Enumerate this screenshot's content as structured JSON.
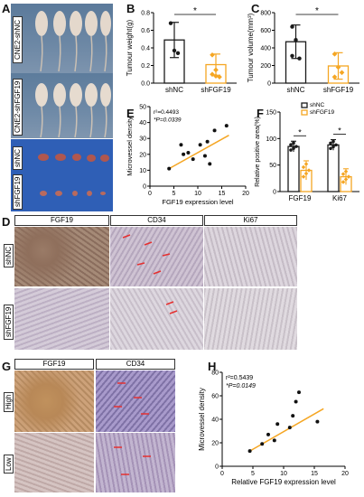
{
  "panels": {
    "A": {
      "label": "A",
      "rows": [
        "CNE2-shNC",
        "CNE2-shFGF19",
        "shNC",
        "shFGF19"
      ]
    },
    "B": {
      "label": "B"
    },
    "C": {
      "label": "C"
    },
    "D": {
      "label": "D",
      "columns": [
        "FGF19",
        "CD34",
        "Ki67"
      ],
      "rows": [
        "shNC",
        "shFGF19"
      ]
    },
    "E": {
      "label": "E"
    },
    "F": {
      "label": "F"
    },
    "G": {
      "label": "G",
      "columns": [
        "FGF19",
        "CD34"
      ],
      "rows": [
        "High",
        "Low"
      ]
    },
    "H": {
      "label": "H"
    }
  },
  "colors": {
    "shNC": "#1a1a1a",
    "shFGF19": "#f5a623",
    "fitline": "#f5a623",
    "arrow": "#e53030"
  },
  "chart_data": [
    {
      "id": "B",
      "type": "bar",
      "categories": [
        "shNC",
        "shFGF19"
      ],
      "values": [
        0.49,
        0.21
      ],
      "errors": [
        0.2,
        0.12
      ],
      "points": [
        [
          0.68,
          0.37,
          0.34
        ],
        [
          0.32,
          0.15,
          0.07,
          0.1,
          0.08
        ]
      ],
      "ylabel": "Tumour weight(g)",
      "ylim": [
        0,
        0.8
      ],
      "yticks": [
        "0.0",
        "0.2",
        "0.4",
        "0.6",
        "0.8"
      ],
      "significance": "*"
    },
    {
      "id": "C",
      "type": "bar",
      "categories": [
        "shNC",
        "shFGF19"
      ],
      "values": [
        470,
        195
      ],
      "errors": [
        190,
        150
      ],
      "points": [
        [
          640,
          490,
          280,
          310
        ],
        [
          330,
          180,
          120,
          70
        ]
      ],
      "ylabel": "Tumour volume(mm³)",
      "ylim": [
        0,
        800
      ],
      "yticks": [
        "0",
        "200",
        "400",
        "600",
        "800"
      ],
      "significance": "*"
    },
    {
      "id": "E",
      "type": "scatter",
      "xlabel": "FGF19 expression level",
      "ylabel": "Microvessel density",
      "xlim": [
        0,
        20
      ],
      "ylim": [
        0,
        50
      ],
      "xticks": [
        "0",
        "5",
        "10",
        "15",
        "20"
      ],
      "yticks": [
        "0",
        "10",
        "20",
        "30",
        "40",
        "50"
      ],
      "points": [
        [
          4,
          11
        ],
        [
          6.5,
          26
        ],
        [
          7,
          20
        ],
        [
          8,
          21
        ],
        [
          9,
          17
        ],
        [
          10.5,
          26
        ],
        [
          11.5,
          19
        ],
        [
          12,
          28
        ],
        [
          12.5,
          14
        ],
        [
          13.5,
          35
        ],
        [
          16,
          38
        ]
      ],
      "fit": [
        [
          4,
          11
        ],
        [
          16.5,
          32
        ]
      ],
      "annotations": [
        "r²=0.4493",
        "*P=0.0339"
      ]
    },
    {
      "id": "F",
      "type": "bar",
      "categories": [
        "FGF19",
        "Ki67"
      ],
      "series": [
        {
          "name": "shNC",
          "values": [
            85,
            88
          ],
          "errors": [
            10,
            10
          ]
        },
        {
          "name": "shFGF19",
          "values": [
            40,
            28
          ],
          "errors": [
            18,
            15
          ]
        }
      ],
      "ylabel": "Relative positive area(%)",
      "ylim": [
        0,
        150
      ],
      "yticks": [
        "0",
        "50",
        "100",
        "150"
      ],
      "significance": [
        "*",
        "*"
      ],
      "legend": "top-right"
    },
    {
      "id": "H",
      "type": "scatter",
      "xlabel": "Relative FGF19 expression level",
      "ylabel": "Microvessel density",
      "xlim": [
        0,
        20
      ],
      "ylim": [
        0,
        80
      ],
      "xticks": [
        "0",
        "5",
        "10",
        "15",
        "20"
      ],
      "yticks": [
        "0",
        "20",
        "40",
        "60",
        "80"
      ],
      "points": [
        [
          4.5,
          13
        ],
        [
          6.5,
          19
        ],
        [
          7.5,
          27
        ],
        [
          8.5,
          22
        ],
        [
          9,
          36
        ],
        [
          11,
          33
        ],
        [
          11.5,
          43
        ],
        [
          12,
          55
        ],
        [
          12.5,
          63
        ],
        [
          15.5,
          38
        ]
      ],
      "fit": [
        [
          4.5,
          13
        ],
        [
          16.5,
          49
        ]
      ],
      "annotations": [
        "r²=0.5439",
        "*P=0.0149"
      ]
    }
  ]
}
